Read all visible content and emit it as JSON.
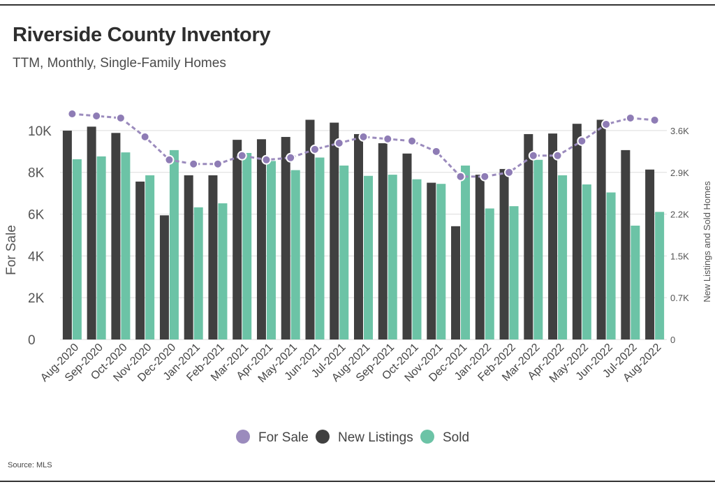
{
  "header": {
    "title": "Riverside County Inventory",
    "subtitle": "TTM, Monthly, Single-Family Homes"
  },
  "footer": {
    "source": "Source:  MLS"
  },
  "chart_data": {
    "type": "bar",
    "title": "Riverside County Inventory",
    "subtitle": "TTM, Monthly, Single-Family Homes",
    "ylabel_left": "For Sale",
    "ylabel_right": "New Listings and Sold Homes",
    "categories": [
      "Aug-2020",
      "Sep-2020",
      "Oct-2020",
      "Nov-2020",
      "Dec-2020",
      "Jan-2021",
      "Feb-2021",
      "Mar-2021",
      "Apr-2021",
      "May-2021",
      "Jun-2021",
      "Jul-2021",
      "Aug-2021",
      "Sep-2021",
      "Oct-2021",
      "Nov-2021",
      "Dec-2021",
      "Jan-2022",
      "Feb-2022",
      "Mar-2022",
      "Apr-2022",
      "May-2022",
      "Jun-2022",
      "Jul-2022",
      "Aug-2022"
    ],
    "left_axis": {
      "ticks": [
        "0",
        "2K",
        "4K",
        "6K",
        "8K",
        "10K"
      ],
      "tick_values": [
        0,
        2000,
        4000,
        6000,
        8000,
        10000
      ],
      "range": [
        0,
        10900
      ]
    },
    "right_axis": {
      "ticks": [
        "0",
        "0.7K",
        "1.5K",
        "2.2K",
        "2.9K",
        "3.6K"
      ],
      "tick_values": [
        0,
        730,
        1460,
        2190,
        2920,
        3650
      ],
      "range": [
        0,
        3980
      ]
    },
    "series": [
      {
        "name": "New Listings",
        "kind": "bar",
        "axis": "right",
        "color": "#404040",
        "values": [
          3650,
          3720,
          3610,
          2760,
          2170,
          2870,
          2870,
          3490,
          3500,
          3540,
          3840,
          3790,
          3590,
          3430,
          3250,
          2740,
          1980,
          2880,
          2980,
          3590,
          3600,
          3770,
          3840,
          3310,
          2970
        ]
      },
      {
        "name": "Sold",
        "kind": "bar",
        "axis": "right",
        "color": "#6cc3a6",
        "values": [
          3150,
          3200,
          3270,
          2870,
          3310,
          2310,
          2380,
          3260,
          3120,
          2960,
          3180,
          3040,
          2860,
          2880,
          2800,
          2720,
          3040,
          2290,
          2330,
          3140,
          2870,
          2710,
          2570,
          1990,
          2230
        ]
      },
      {
        "name": "For Sale",
        "kind": "line",
        "axis": "left",
        "color": "#9b8bbd",
        "values": [
          10800,
          10700,
          10600,
          9700,
          8600,
          8400,
          8400,
          8800,
          8600,
          8700,
          9100,
          9400,
          9700,
          9600,
          9500,
          9000,
          7800,
          7800,
          8000,
          8800,
          8800,
          9500,
          10300,
          10600,
          10500
        ]
      }
    ],
    "legend": {
      "position": "bottom",
      "items": [
        "For Sale",
        "New Listings",
        "Sold"
      ]
    },
    "grid": true
  }
}
